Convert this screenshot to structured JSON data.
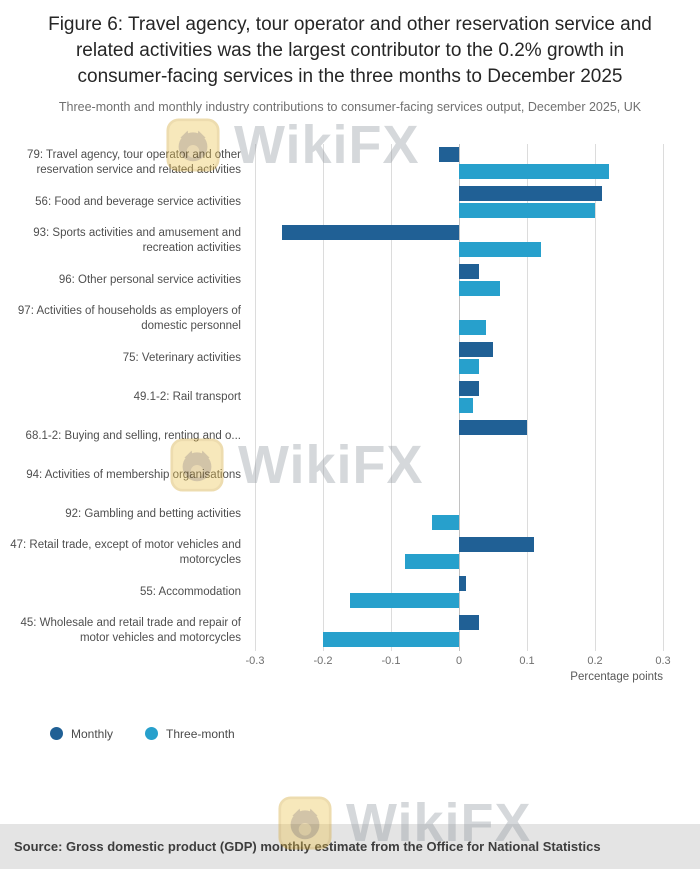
{
  "title": "Figure 6: Travel agency, tour operator and other reservation service and related activities was the largest contributor to the 0.2% growth in consumer-facing services in the three months to December 2025",
  "subtitle": "Three-month and monthly industry contributions to consumer-facing services output, December 2025, UK",
  "source": "Source: Gross domestic product (GDP) monthly estimate from the Office for National Statistics",
  "watermark": {
    "text": "WikiFX",
    "logo_icon": "wikifx-lion-logo-icon",
    "gold": "#ecc44e"
  },
  "colors": {
    "monthly": "#206095",
    "three_month": "#27a0cc"
  },
  "legend": [
    {
      "label": "Monthly",
      "color": "#206095"
    },
    {
      "label": "Three-month",
      "color": "#27a0cc"
    }
  ],
  "chart_data": {
    "type": "bar",
    "orientation": "horizontal",
    "title": "Figure 6: Travel agency, tour operator and other reservation service and related activities was the largest contributor to the 0.2% growth in consumer-facing services in the three months to December 2025",
    "subtitle": "Three-month and monthly industry contributions to consumer-facing services output, December 2025, UK",
    "categories": [
      "79: Travel agency, tour operator and other reservation service and related activities",
      "56: Food and beverage service activities",
      "93: Sports activities and amusement and recreation activities",
      "96: Other personal service activities",
      "97: Activities of households as employers of domestic personnel",
      "75: Veterinary activities",
      "49.1-2: Rail transport",
      "68.1-2: Buying and selling, renting and o...",
      "94: Activities of membership organisations",
      "92: Gambling and betting activities",
      "47: Retail trade, except of motor vehicles and motorcycles",
      "55: Accommodation",
      "45: Wholesale and retail trade and repair of motor vehicles and motorcycles"
    ],
    "series": [
      {
        "name": "Monthly",
        "color": "#206095",
        "values": [
          -0.03,
          0.21,
          -0.26,
          0.03,
          0.0,
          0.05,
          0.03,
          0.1,
          0.0,
          0.0,
          0.11,
          0.01,
          0.03
        ]
      },
      {
        "name": "Three-month",
        "color": "#27a0cc",
        "values": [
          0.22,
          0.2,
          0.12,
          0.06,
          0.04,
          0.03,
          0.02,
          0.0,
          0.0,
          -0.04,
          -0.08,
          -0.16,
          -0.2
        ]
      }
    ],
    "xlabel": "Percentage points",
    "xlim": [
      -0.3,
      0.3
    ],
    "xticks": [
      -0.3,
      -0.2,
      -0.1,
      0,
      0.1,
      0.2,
      0.3
    ],
    "xtick_labels": [
      "-0.3",
      "-0.2",
      "-0.1",
      "0",
      "0.1",
      "0.2",
      "0.3"
    ],
    "grid": true,
    "legend_position": "bottom-left"
  }
}
